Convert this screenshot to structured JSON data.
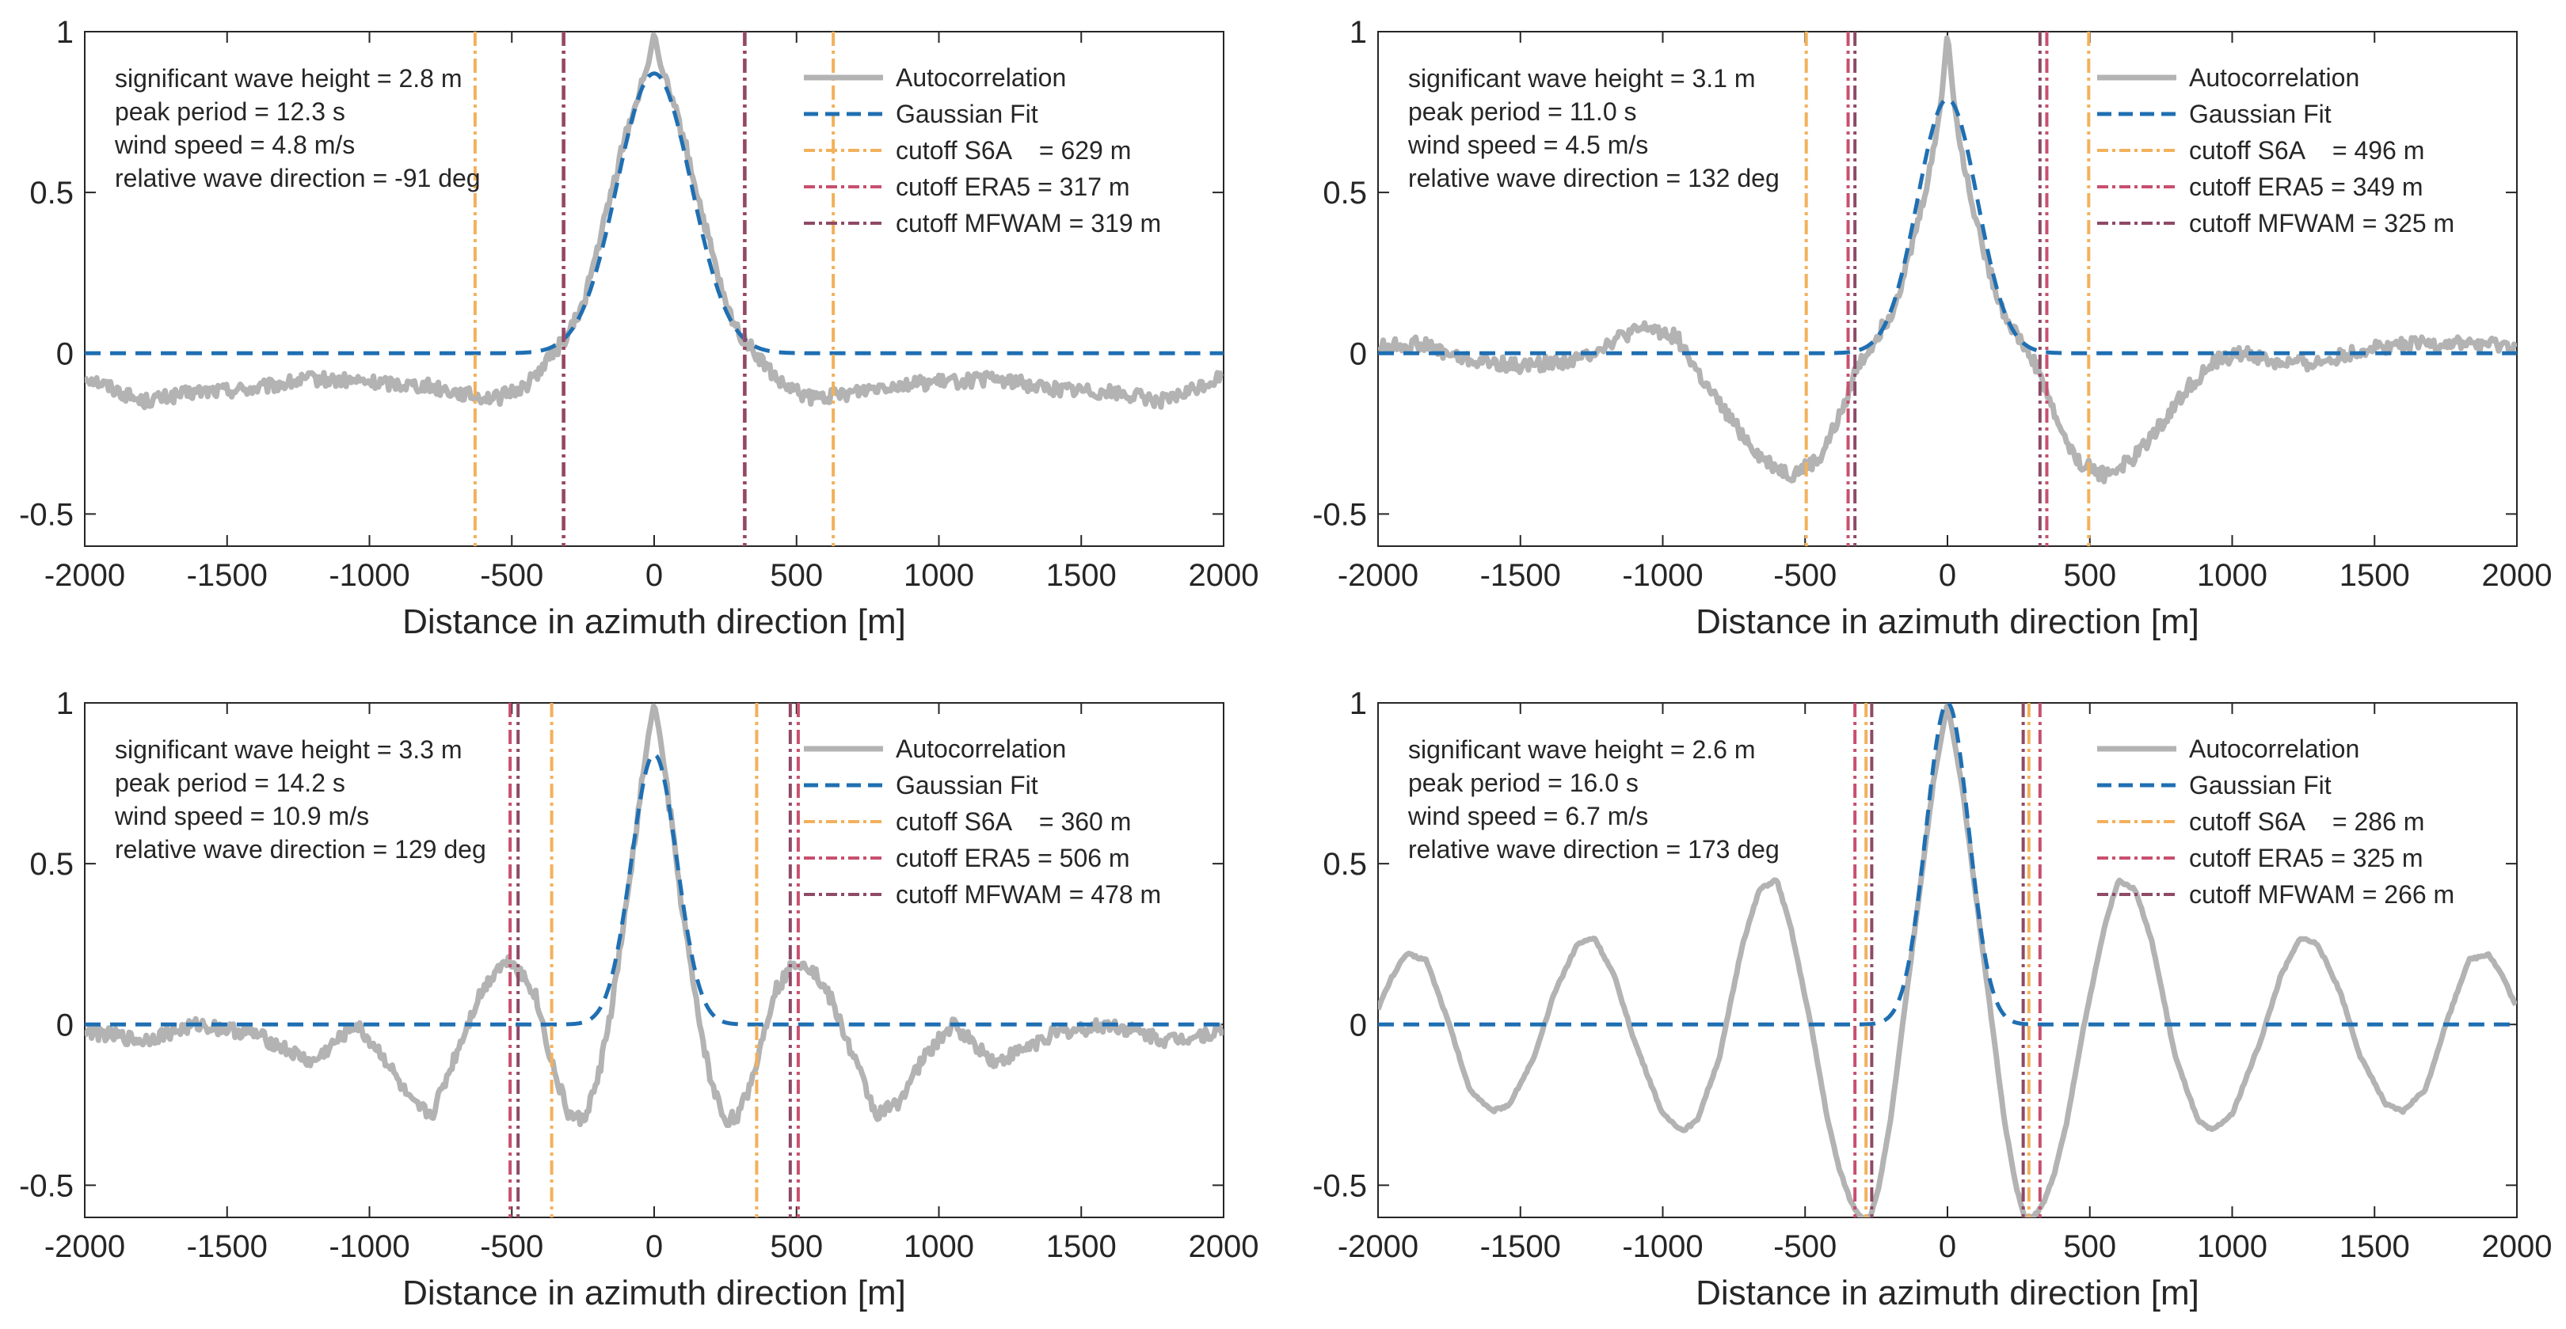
{
  "figure_title": "",
  "colors": {
    "autocorrelation": "#b3b3b3",
    "gaussian": "#1f6fb2",
    "cutoff_s6a": "#f2b15c",
    "cutoff_era5": "#c8506e",
    "cutoff_mfwam": "#8e4a66",
    "axes": "#262626"
  },
  "chart_data": [
    {
      "type": "line",
      "panel": "top-left",
      "title": "",
      "xlabel": "Distance in azimuth direction [m]",
      "ylabel": "",
      "xlim": [
        -2000,
        2000
      ],
      "ylim": [
        -0.6,
        1
      ],
      "xticks": [
        -2000,
        -1500,
        -1000,
        -500,
        0,
        500,
        1000,
        1500,
        2000
      ],
      "xtick_labels": [
        "-2000",
        "-1500",
        "-1000",
        "-500",
        "0",
        "500",
        "1000",
        "1500",
        "2000"
      ],
      "yticks": [
        -0.5,
        0,
        0.5,
        1
      ],
      "ytick_labels": [
        "-0.5",
        "0",
        "0.5",
        "1"
      ],
      "info_lines": [
        "significant wave height = 2.8 m",
        "peak period = 12.3 s",
        "wind speed = 4.8 m/s",
        "relative wave direction = -91 deg"
      ],
      "legend": [
        "Autocorrelation",
        "Gaussian Fit",
        "cutoff S6A    = 629 m",
        "cutoff ERA5 = 317 m",
        "cutoff MFWAM = 319 m"
      ],
      "legend_position": "top-right",
      "gaussian": {
        "amplitude": 0.87,
        "sigma": 130
      },
      "cutoffs": {
        "S6A": 629,
        "ERA5": 317,
        "MFWAM": 319
      },
      "autocorrelation": {
        "x": [
          -2000,
          -1800,
          -1600,
          -1400,
          -1200,
          -1000,
          -800,
          -650,
          -550,
          -450,
          -400,
          -300,
          -250,
          -200,
          -150,
          -100,
          -50,
          -20,
          0,
          20,
          50,
          100,
          150,
          200,
          250,
          300,
          400,
          450,
          550,
          650,
          800,
          1000,
          1200,
          1400,
          1600,
          1800,
          2000
        ],
        "y": [
          -0.07,
          -0.15,
          -0.12,
          -0.11,
          -0.08,
          -0.09,
          -0.1,
          -0.13,
          -0.14,
          -0.1,
          -0.05,
          0.06,
          0.15,
          0.32,
          0.5,
          0.68,
          0.82,
          0.9,
          1.0,
          0.9,
          0.82,
          0.68,
          0.5,
          0.32,
          0.15,
          0.06,
          -0.05,
          -0.1,
          -0.14,
          -0.13,
          -0.1,
          -0.09,
          -0.08,
          -0.11,
          -0.12,
          -0.15,
          -0.07
        ]
      }
    },
    {
      "type": "line",
      "panel": "top-right",
      "title": "",
      "xlabel": "Distance in azimuth direction [m]",
      "ylabel": "",
      "xlim": [
        -2000,
        2000
      ],
      "ylim": [
        -0.6,
        1
      ],
      "xticks": [
        -2000,
        -1500,
        -1000,
        -500,
        0,
        500,
        1000,
        1500,
        2000
      ],
      "xtick_labels": [
        "-2000",
        "-1500",
        "-1000",
        "-500",
        "0",
        "500",
        "1000",
        "1500",
        "2000"
      ],
      "yticks": [
        -0.5,
        0,
        0.5,
        1
      ],
      "ytick_labels": [
        "-0.5",
        "0",
        "0.5",
        "1"
      ],
      "info_lines": [
        "significant wave height = 3.1 m",
        "peak period = 11.0 s",
        "wind speed = 4.5 m/s",
        "relative wave direction = 132 deg"
      ],
      "legend": [
        "Autocorrelation",
        "Gaussian Fit",
        "cutoff S6A    = 496 m",
        "cutoff ERA5 = 349 m",
        "cutoff MFWAM = 325 m"
      ],
      "legend_position": "top-right",
      "gaussian": {
        "amplitude": 0.79,
        "sigma": 105
      },
      "cutoffs": {
        "S6A": 496,
        "ERA5": 349,
        "MFWAM": 325
      },
      "autocorrelation": {
        "x": [
          -2000,
          -1850,
          -1700,
          -1500,
          -1300,
          -1150,
          -1050,
          -950,
          -850,
          -750,
          -650,
          -550,
          -450,
          -380,
          -320,
          -250,
          -200,
          -150,
          -100,
          -50,
          -20,
          0,
          20,
          50,
          100,
          150,
          200,
          250,
          320,
          380,
          450,
          550,
          650,
          750,
          850,
          950,
          1050,
          1150,
          1300,
          1500,
          1700,
          1850,
          2000
        ],
        "y": [
          0.02,
          0.03,
          -0.02,
          -0.04,
          -0.02,
          0.05,
          0.08,
          0.05,
          -0.1,
          -0.22,
          -0.33,
          -0.38,
          -0.33,
          -0.2,
          -0.05,
          0.05,
          0.12,
          0.25,
          0.42,
          0.62,
          0.8,
          1.0,
          0.8,
          0.62,
          0.42,
          0.25,
          0.12,
          0.05,
          -0.05,
          -0.2,
          -0.33,
          -0.38,
          -0.33,
          -0.22,
          -0.1,
          -0.02,
          0.0,
          -0.03,
          -0.03,
          0.02,
          0.03,
          0.03,
          0.02
        ]
      }
    },
    {
      "type": "line",
      "panel": "bottom-left",
      "title": "",
      "xlabel": "Distance in azimuth direction [m]",
      "ylabel": "",
      "xlim": [
        -2000,
        2000
      ],
      "ylim": [
        -0.6,
        1
      ],
      "xticks": [
        -2000,
        -1500,
        -1000,
        -500,
        0,
        500,
        1000,
        1500,
        2000
      ],
      "xtick_labels": [
        "-2000",
        "-1500",
        "-1000",
        "-500",
        "0",
        "500",
        "1000",
        "1500",
        "2000"
      ],
      "yticks": [
        -0.5,
        0,
        0.5,
        1
      ],
      "ytick_labels": [
        "-0.5",
        "0",
        "0.5",
        "1"
      ],
      "info_lines": [
        "significant wave height = 3.3 m",
        "peak period = 14.2 s",
        "wind speed = 10.9 m/s",
        "relative wave direction = 129 deg"
      ],
      "legend": [
        "Autocorrelation",
        "Gaussian Fit",
        "cutoff S6A    = 360 m",
        "cutoff ERA5 = 506 m",
        "cutoff MFWAM = 478 m"
      ],
      "legend_position": "top-right",
      "gaussian": {
        "amplitude": 0.84,
        "sigma": 80
      },
      "cutoffs": {
        "S6A": 360,
        "ERA5": 506,
        "MFWAM": 478
      },
      "autocorrelation": {
        "x": [
          -2000,
          -1800,
          -1600,
          -1400,
          -1200,
          -1050,
          -950,
          -850,
          -780,
          -700,
          -620,
          -550,
          -500,
          -420,
          -350,
          -300,
          -250,
          -200,
          -150,
          -100,
          -50,
          -20,
          0,
          20,
          50,
          100,
          150,
          200,
          250,
          300,
          350,
          420,
          500,
          550,
          620,
          700,
          780,
          850,
          950,
          1050,
          1200,
          1400,
          1600,
          1800,
          2000
        ],
        "y": [
          -0.02,
          -0.05,
          0.0,
          -0.03,
          -0.12,
          0.0,
          -0.1,
          -0.25,
          -0.28,
          -0.1,
          0.08,
          0.18,
          0.2,
          0.1,
          -0.15,
          -0.28,
          -0.3,
          -0.18,
          0.05,
          0.35,
          0.7,
          0.9,
          1.0,
          0.9,
          0.7,
          0.35,
          0.05,
          -0.18,
          -0.3,
          -0.28,
          -0.15,
          0.1,
          0.2,
          0.18,
          0.08,
          -0.1,
          -0.28,
          -0.25,
          -0.1,
          0.0,
          -0.12,
          -0.03,
          0.0,
          -0.05,
          -0.02
        ]
      }
    },
    {
      "type": "line",
      "panel": "bottom-right",
      "title": "",
      "xlabel": "Distance in azimuth direction [m]",
      "ylabel": "",
      "xlim": [
        -2000,
        2000
      ],
      "ylim": [
        -0.6,
        1
      ],
      "xticks": [
        -2000,
        -1500,
        -1000,
        -500,
        0,
        500,
        1000,
        1500,
        2000
      ],
      "xtick_labels": [
        "-2000",
        "-1500",
        "-1000",
        "-500",
        "0",
        "500",
        "1000",
        "1500",
        "2000"
      ],
      "yticks": [
        -0.5,
        0,
        0.5,
        1
      ],
      "ytick_labels": [
        "-0.5",
        "0",
        "0.5",
        "1"
      ],
      "info_lines": [
        "significant wave height = 2.6 m",
        "peak period = 16.0 s",
        "wind speed = 6.7 m/s",
        "relative wave direction = 173 deg"
      ],
      "legend": [
        "Autocorrelation",
        "Gaussian Fit",
        "cutoff S6A    = 286 m",
        "cutoff ERA5 = 325 m",
        "cutoff MFWAM = 266 m"
      ],
      "legend_position": "top-right",
      "gaussian": {
        "amplitude": 1.0,
        "sigma": 75
      },
      "cutoffs": {
        "S6A": 286,
        "ERA5": 325,
        "MFWAM": 266
      },
      "autocorrelation": {
        "x": [
          -2000,
          -1950,
          -1900,
          -1830,
          -1750,
          -1680,
          -1600,
          -1540,
          -1450,
          -1380,
          -1300,
          -1240,
          -1170,
          -1100,
          -1000,
          -930,
          -880,
          -800,
          -720,
          -660,
          -600,
          -550,
          -480,
          -420,
          -380,
          -340,
          -320,
          -300,
          -270,
          -240,
          -200,
          -150,
          -100,
          -50,
          0,
          50,
          100,
          150,
          200,
          240,
          270,
          300,
          320,
          340,
          380,
          420,
          480,
          550,
          600,
          660,
          720,
          800,
          880,
          930,
          1000,
          1100,
          1170,
          1240,
          1300,
          1380,
          1450,
          1540,
          1600,
          1680,
          1750,
          1830,
          1900,
          1950,
          2000
        ],
        "y": [
          0.05,
          0.15,
          0.22,
          0.2,
          0.0,
          -0.2,
          -0.27,
          -0.25,
          -0.1,
          0.1,
          0.25,
          0.27,
          0.15,
          -0.05,
          -0.28,
          -0.33,
          -0.3,
          -0.1,
          0.25,
          0.42,
          0.45,
          0.3,
          0.0,
          -0.3,
          -0.45,
          -0.55,
          -0.58,
          -0.6,
          -0.6,
          -0.5,
          -0.3,
          0.05,
          0.4,
          0.75,
          1.0,
          0.75,
          0.4,
          0.05,
          -0.3,
          -0.5,
          -0.6,
          -0.6,
          -0.58,
          -0.55,
          -0.45,
          -0.3,
          0.0,
          0.3,
          0.45,
          0.42,
          0.25,
          -0.1,
          -0.3,
          -0.33,
          -0.28,
          -0.05,
          0.15,
          0.27,
          0.25,
          0.1,
          -0.1,
          -0.25,
          -0.27,
          -0.2,
          0.0,
          0.2,
          0.22,
          0.15,
          0.05
        ]
      }
    }
  ]
}
